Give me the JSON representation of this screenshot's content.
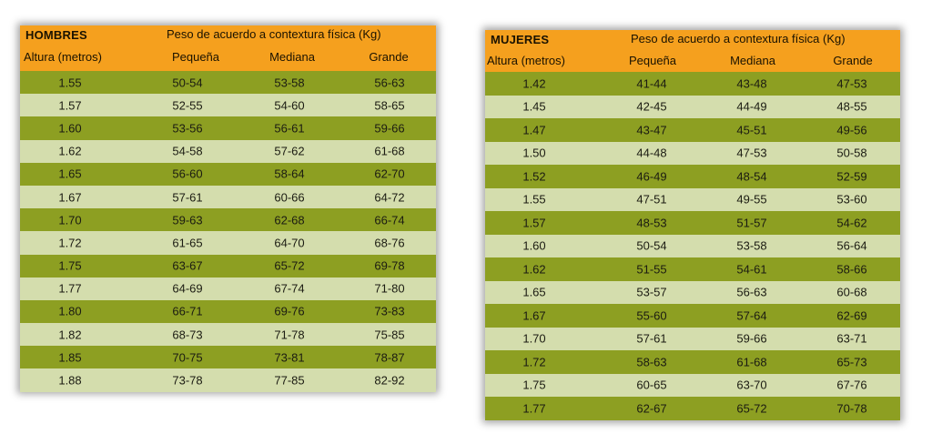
{
  "hombres": {
    "title": "HOMBRES",
    "super_header": "Peso de acuerdo a contextura física (Kg)",
    "columns": [
      "Altura (metros)",
      "Pequeña",
      "Mediana",
      "Grande"
    ],
    "rows": [
      [
        "1.55",
        "50-54",
        "53-58",
        "56-63"
      ],
      [
        "1.57",
        "52-55",
        "54-60",
        "58-65"
      ],
      [
        "1.60",
        "53-56",
        "56-61",
        "59-66"
      ],
      [
        "1.62",
        "54-58",
        "57-62",
        "61-68"
      ],
      [
        "1.65",
        "56-60",
        "58-64",
        "62-70"
      ],
      [
        "1.67",
        "57-61",
        "60-66",
        "64-72"
      ],
      [
        "1.70",
        "59-63",
        "62-68",
        "66-74"
      ],
      [
        "1.72",
        "61-65",
        "64-70",
        "68-76"
      ],
      [
        "1.75",
        "63-67",
        "65-72",
        "69-78"
      ],
      [
        "1.77",
        "64-69",
        "67-74",
        "71-80"
      ],
      [
        "1.80",
        "66-71",
        "69-76",
        "73-83"
      ],
      [
        "1.82",
        "68-73",
        "71-78",
        "75-85"
      ],
      [
        "1.85",
        "70-75",
        "73-81",
        "78-87"
      ],
      [
        "1.88",
        "73-78",
        "77-85",
        "82-92"
      ]
    ]
  },
  "mujeres": {
    "title": "MUJERES",
    "super_header": "Peso de acuerdo a contextura física (Kg)",
    "columns": [
      "Altura (metros)",
      "Pequeña",
      "Mediana",
      "Grande"
    ],
    "rows": [
      [
        "1.42",
        "41-44",
        "43-48",
        "47-53"
      ],
      [
        "1.45",
        "42-45",
        "44-49",
        "48-55"
      ],
      [
        "1.47",
        "43-47",
        "45-51",
        "49-56"
      ],
      [
        "1.50",
        "44-48",
        "47-53",
        "50-58"
      ],
      [
        "1.52",
        "46-49",
        "48-54",
        "52-59"
      ],
      [
        "1.55",
        "47-51",
        "49-55",
        "53-60"
      ],
      [
        "1.57",
        "48-53",
        "51-57",
        "54-62"
      ],
      [
        "1.60",
        "50-54",
        "53-58",
        "56-64"
      ],
      [
        "1.62",
        "51-55",
        "54-61",
        "58-66"
      ],
      [
        "1.65",
        "53-57",
        "56-63",
        "60-68"
      ],
      [
        "1.67",
        "55-60",
        "57-64",
        "62-69"
      ],
      [
        "1.70",
        "57-61",
        "59-66",
        "63-71"
      ],
      [
        "1.72",
        "58-63",
        "61-68",
        "65-73"
      ],
      [
        "1.75",
        "60-65",
        "63-70",
        "67-76"
      ],
      [
        "1.77",
        "62-67",
        "65-72",
        "70-78"
      ]
    ]
  },
  "colors": {
    "header": "#f5a01e",
    "row_dark": "#8d9f22",
    "row_light": "#d4ddad"
  }
}
